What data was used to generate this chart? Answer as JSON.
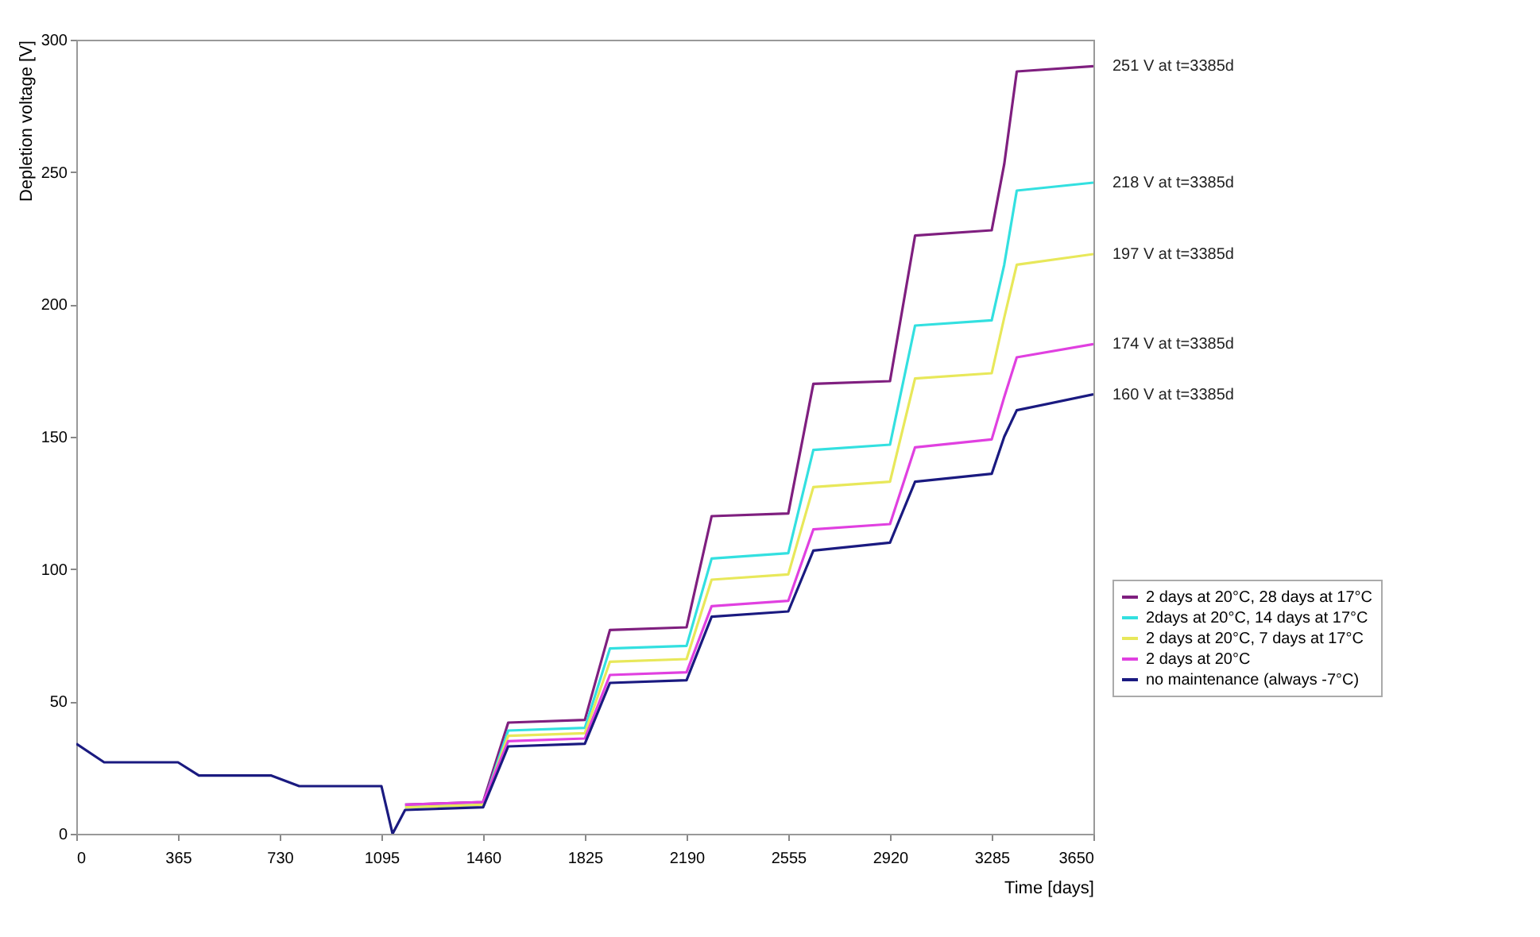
{
  "chart_data": {
    "type": "line",
    "xlabel": "Time [days]",
    "ylabel": "Depletion voltage [V]",
    "x": [
      0,
      100,
      365,
      440,
      700,
      800,
      1095,
      1135,
      1180,
      1460,
      1550,
      1825,
      1915,
      2190,
      2280,
      2555,
      2645,
      2920,
      3010,
      3285,
      3330,
      3375,
      3650
    ],
    "series": [
      {
        "name": "2 days at 20°C, 28 days at 17°C",
        "color": "#7f1f7f",
        "values": [
          null,
          null,
          null,
          null,
          null,
          null,
          null,
          null,
          11,
          12,
          42,
          43,
          77,
          78,
          120,
          121,
          170,
          171,
          226,
          228,
          253,
          288,
          290
        ]
      },
      {
        "name": "2days at 20°C, 14 days at 17°C",
        "color": "#33e0e0",
        "values": [
          null,
          null,
          null,
          null,
          null,
          null,
          null,
          null,
          10,
          11,
          39,
          40,
          70,
          71,
          104,
          106,
          145,
          147,
          192,
          194,
          215,
          243,
          246
        ]
      },
      {
        "name": "2 days at 20°C, 7 days at 17°C",
        "color": "#e8e85a",
        "values": [
          null,
          null,
          null,
          null,
          null,
          null,
          null,
          null,
          10,
          11,
          37,
          38,
          65,
          66,
          96,
          98,
          131,
          133,
          172,
          174,
          195,
          215,
          219
        ]
      },
      {
        "name": "2 days at 20°C",
        "color": "#e040e0",
        "values": [
          null,
          null,
          null,
          null,
          null,
          null,
          null,
          null,
          11,
          12,
          35,
          36,
          60,
          61,
          86,
          88,
          115,
          117,
          146,
          149,
          165,
          180,
          185
        ]
      },
      {
        "name": "no maintenance (always -7°C)",
        "color": "#1a1a80",
        "values": [
          34,
          27,
          27,
          22,
          22,
          18,
          18,
          0,
          9,
          10,
          33,
          34,
          57,
          58,
          82,
          84,
          107,
          110,
          133,
          136,
          150,
          160,
          166
        ]
      }
    ],
    "xlim": [
      0,
      3650
    ],
    "xticks": [
      0,
      365,
      730,
      1095,
      1460,
      1825,
      2190,
      2555,
      2920,
      3285,
      3650
    ],
    "ylim": [
      0,
      300
    ],
    "yticks": [
      0,
      50,
      100,
      150,
      200,
      250,
      300
    ],
    "annotations": [
      "251 V at t=3385d",
      "218 V at t=3385d",
      "197 V at t=3385d",
      "174 V at t=3385d",
      "160 V at t=3385d"
    ],
    "grid": false,
    "legend": "right",
    "marker": "none",
    "line_style": "solid"
  }
}
